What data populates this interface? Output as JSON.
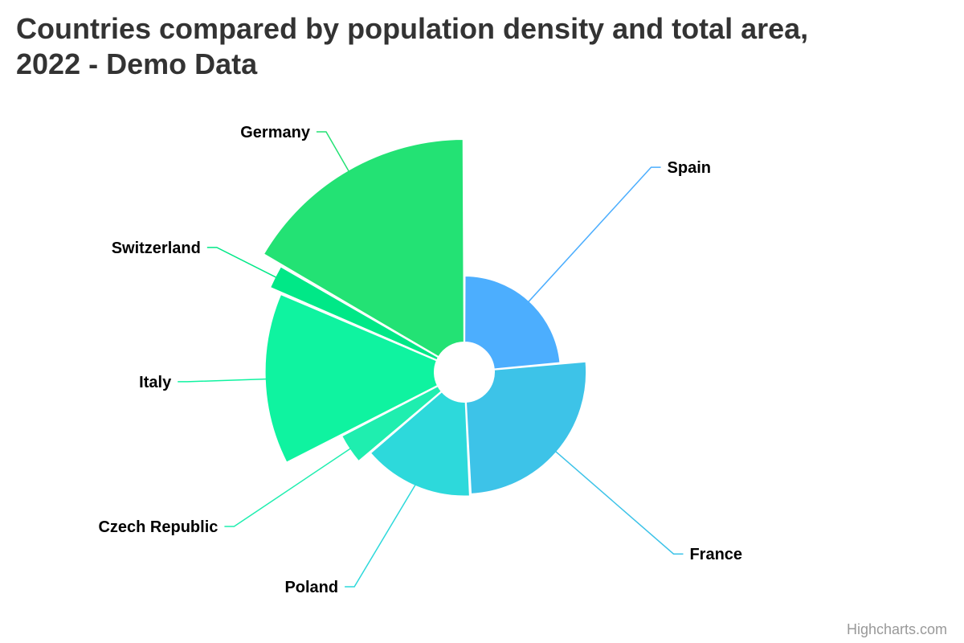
{
  "chart_data": {
    "type": "variable-pie",
    "title_lines": [
      "Countries compared by population density and total area,",
      "2022 - Demo Data"
    ],
    "slices": [
      {
        "name": "Spain",
        "value": 505992,
        "z": 92,
        "color": "#4caefe"
      },
      {
        "name": "France",
        "value": 551695,
        "z": 119,
        "color": "#3dc3e8"
      },
      {
        "name": "Poland",
        "value": 312679,
        "z": 121,
        "color": "#2dd9db"
      },
      {
        "name": "Czech Republic",
        "value": 78865,
        "z": 136,
        "color": "#1feeaf"
      },
      {
        "name": "Italy",
        "value": 301336,
        "z": 200,
        "color": "#0ff3a0"
      },
      {
        "name": "Switzerland",
        "value": 41284,
        "z": 213,
        "color": "#00e887"
      },
      {
        "name": "Germany",
        "value": 357114,
        "z": 235,
        "color": "#23e274"
      }
    ]
  },
  "credits": "Highcharts.com"
}
